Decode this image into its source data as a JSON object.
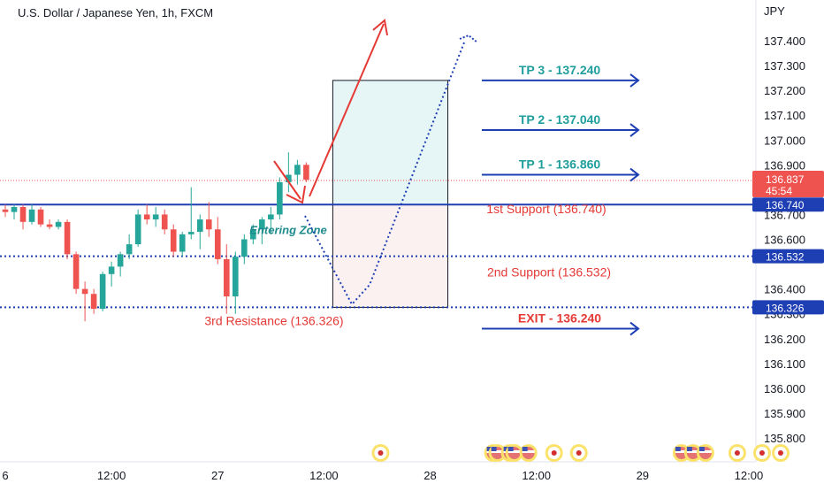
{
  "chart_title": "U.S. Dollar / Japanese Yen, 1h, FXCM",
  "colors": {
    "up": "#26a69a",
    "down": "#ef5350",
    "blue": "#1e3fb4",
    "red": "#e53935",
    "teal_text": "#1e9e9c",
    "zone_green": "#e6f6f7",
    "zone_red": "#fcf1f1"
  },
  "chart_data": {
    "type": "candlestick",
    "title": "U.S. Dollar / Japanese Yen, 1h, FXCM",
    "y_unit": "JPY",
    "y_ticks": [
      "137.400",
      "137.300",
      "137.200",
      "137.100",
      "137.000",
      "136.900",
      "136.800",
      "136.700",
      "136.600",
      "136.400",
      "136.300",
      "136.200",
      "136.100",
      "136.000",
      "135.900",
      "135.800"
    ],
    "ylim": [
      135.73,
      137.48
    ],
    "x_ticks": [
      "6",
      "12:00",
      "27",
      "12:00",
      "28",
      "12:00",
      "29",
      "12:00"
    ],
    "x_tick_hours": [
      0,
      12,
      24,
      36,
      48,
      60,
      72,
      84
    ],
    "x_range_hours": [
      0,
      90
    ],
    "candles": [
      {
        "t": 0,
        "o": 136.72,
        "h": 136.74,
        "l": 136.69,
        "c": 136.71
      },
      {
        "t": 1,
        "o": 136.71,
        "h": 136.74,
        "l": 136.68,
        "c": 136.73
      },
      {
        "t": 2,
        "o": 136.73,
        "h": 136.74,
        "l": 136.64,
        "c": 136.67
      },
      {
        "t": 3,
        "o": 136.67,
        "h": 136.74,
        "l": 136.66,
        "c": 136.72
      },
      {
        "t": 4,
        "o": 136.72,
        "h": 136.73,
        "l": 136.65,
        "c": 136.66
      },
      {
        "t": 5,
        "o": 136.66,
        "h": 136.68,
        "l": 136.64,
        "c": 136.65
      },
      {
        "t": 6,
        "o": 136.65,
        "h": 136.68,
        "l": 136.64,
        "c": 136.67
      },
      {
        "t": 7,
        "o": 136.67,
        "h": 136.68,
        "l": 136.52,
        "c": 136.54
      },
      {
        "t": 8,
        "o": 136.54,
        "h": 136.55,
        "l": 136.38,
        "c": 136.4
      },
      {
        "t": 9,
        "o": 136.4,
        "h": 136.43,
        "l": 136.27,
        "c": 136.38
      },
      {
        "t": 10,
        "o": 136.38,
        "h": 136.4,
        "l": 136.3,
        "c": 136.32
      },
      {
        "t": 11,
        "o": 136.32,
        "h": 136.47,
        "l": 136.31,
        "c": 136.46
      },
      {
        "t": 12,
        "o": 136.46,
        "h": 136.51,
        "l": 136.41,
        "c": 136.49
      },
      {
        "t": 13,
        "o": 136.49,
        "h": 136.55,
        "l": 136.45,
        "c": 136.54
      },
      {
        "t": 14,
        "o": 136.54,
        "h": 136.62,
        "l": 136.52,
        "c": 136.58
      },
      {
        "t": 15,
        "o": 136.58,
        "h": 136.72,
        "l": 136.57,
        "c": 136.7
      },
      {
        "t": 16,
        "o": 136.7,
        "h": 136.74,
        "l": 136.66,
        "c": 136.68
      },
      {
        "t": 17,
        "o": 136.68,
        "h": 136.73,
        "l": 136.65,
        "c": 136.7
      },
      {
        "t": 18,
        "o": 136.7,
        "h": 136.72,
        "l": 136.62,
        "c": 136.64
      },
      {
        "t": 19,
        "o": 136.64,
        "h": 136.66,
        "l": 136.53,
        "c": 136.55
      },
      {
        "t": 20,
        "o": 136.55,
        "h": 136.63,
        "l": 136.53,
        "c": 136.62
      },
      {
        "t": 21,
        "o": 136.62,
        "h": 136.81,
        "l": 136.6,
        "c": 136.63
      },
      {
        "t": 22,
        "o": 136.63,
        "h": 136.7,
        "l": 136.56,
        "c": 136.68
      },
      {
        "t": 23,
        "o": 136.68,
        "h": 136.75,
        "l": 136.61,
        "c": 136.64
      },
      {
        "t": 24,
        "o": 136.64,
        "h": 136.69,
        "l": 136.5,
        "c": 136.52
      },
      {
        "t": 25,
        "o": 136.52,
        "h": 136.58,
        "l": 136.3,
        "c": 136.37
      },
      {
        "t": 26,
        "o": 136.37,
        "h": 136.55,
        "l": 136.3,
        "c": 136.53
      },
      {
        "t": 27,
        "o": 136.53,
        "h": 136.62,
        "l": 136.5,
        "c": 136.6
      },
      {
        "t": 28,
        "o": 136.6,
        "h": 136.66,
        "l": 136.58,
        "c": 136.64
      },
      {
        "t": 29,
        "o": 136.64,
        "h": 136.69,
        "l": 136.58,
        "c": 136.68
      },
      {
        "t": 30,
        "o": 136.68,
        "h": 136.73,
        "l": 136.62,
        "c": 136.7
      },
      {
        "t": 31,
        "o": 136.7,
        "h": 136.85,
        "l": 136.68,
        "c": 136.83
      },
      {
        "t": 32,
        "o": 136.83,
        "h": 136.95,
        "l": 136.79,
        "c": 136.86
      },
      {
        "t": 33,
        "o": 136.86,
        "h": 136.92,
        "l": 136.82,
        "c": 136.9
      },
      {
        "t": 34,
        "o": 136.9,
        "h": 136.91,
        "l": 136.83,
        "c": 136.84
      }
    ],
    "horizontal_lines": [
      {
        "value": 136.74,
        "style": "solid",
        "color": "#1e3fb4",
        "label": "136.740"
      },
      {
        "value": 136.532,
        "style": "dotted",
        "color": "#1e3fb4",
        "label": "136.532"
      },
      {
        "value": 136.326,
        "style": "dotted",
        "color": "#1e3fb4",
        "label": "136.326"
      },
      {
        "value": 136.837,
        "style": "dotted",
        "color": "#ef5350"
      }
    ],
    "current_price": {
      "value": "136.837",
      "countdown": "45:54"
    },
    "zones": [
      {
        "type": "profit",
        "from": 136.74,
        "to": 137.24,
        "t_start": 37,
        "t_end": 50
      },
      {
        "type": "loss",
        "from": 136.326,
        "to": 136.74,
        "t_start": 37,
        "t_end": 50
      }
    ],
    "targets": [
      {
        "label": "TP 3 - 137.240",
        "value": 137.24,
        "kind": "tp"
      },
      {
        "label": "TP 2 - 137.040",
        "value": 137.04,
        "kind": "tp"
      },
      {
        "label": "TP 1 - 136.860",
        "value": 136.86,
        "kind": "tp"
      },
      {
        "label": "EXIT - 136.240",
        "value": 136.24,
        "kind": "exit"
      }
    ],
    "support_labels": [
      {
        "label": "1st Support (136.740)",
        "value": 136.74
      },
      {
        "label": "2nd Support (136.532)",
        "value": 136.532
      },
      {
        "label": "3rd Resistance (136.326)",
        "value": 136.326
      }
    ],
    "annotations": [
      {
        "text": "Entering Zone",
        "t": 27.6,
        "value": 136.64
      }
    ],
    "event_markers": {
      "flag": [
        55.1,
        55.6,
        57.0,
        57.5,
        59.1,
        76.4,
        77.7,
        79.1
      ],
      "dot": [
        42.4,
        62.0,
        64.8,
        82.7,
        85.5,
        87.6
      ]
    }
  }
}
